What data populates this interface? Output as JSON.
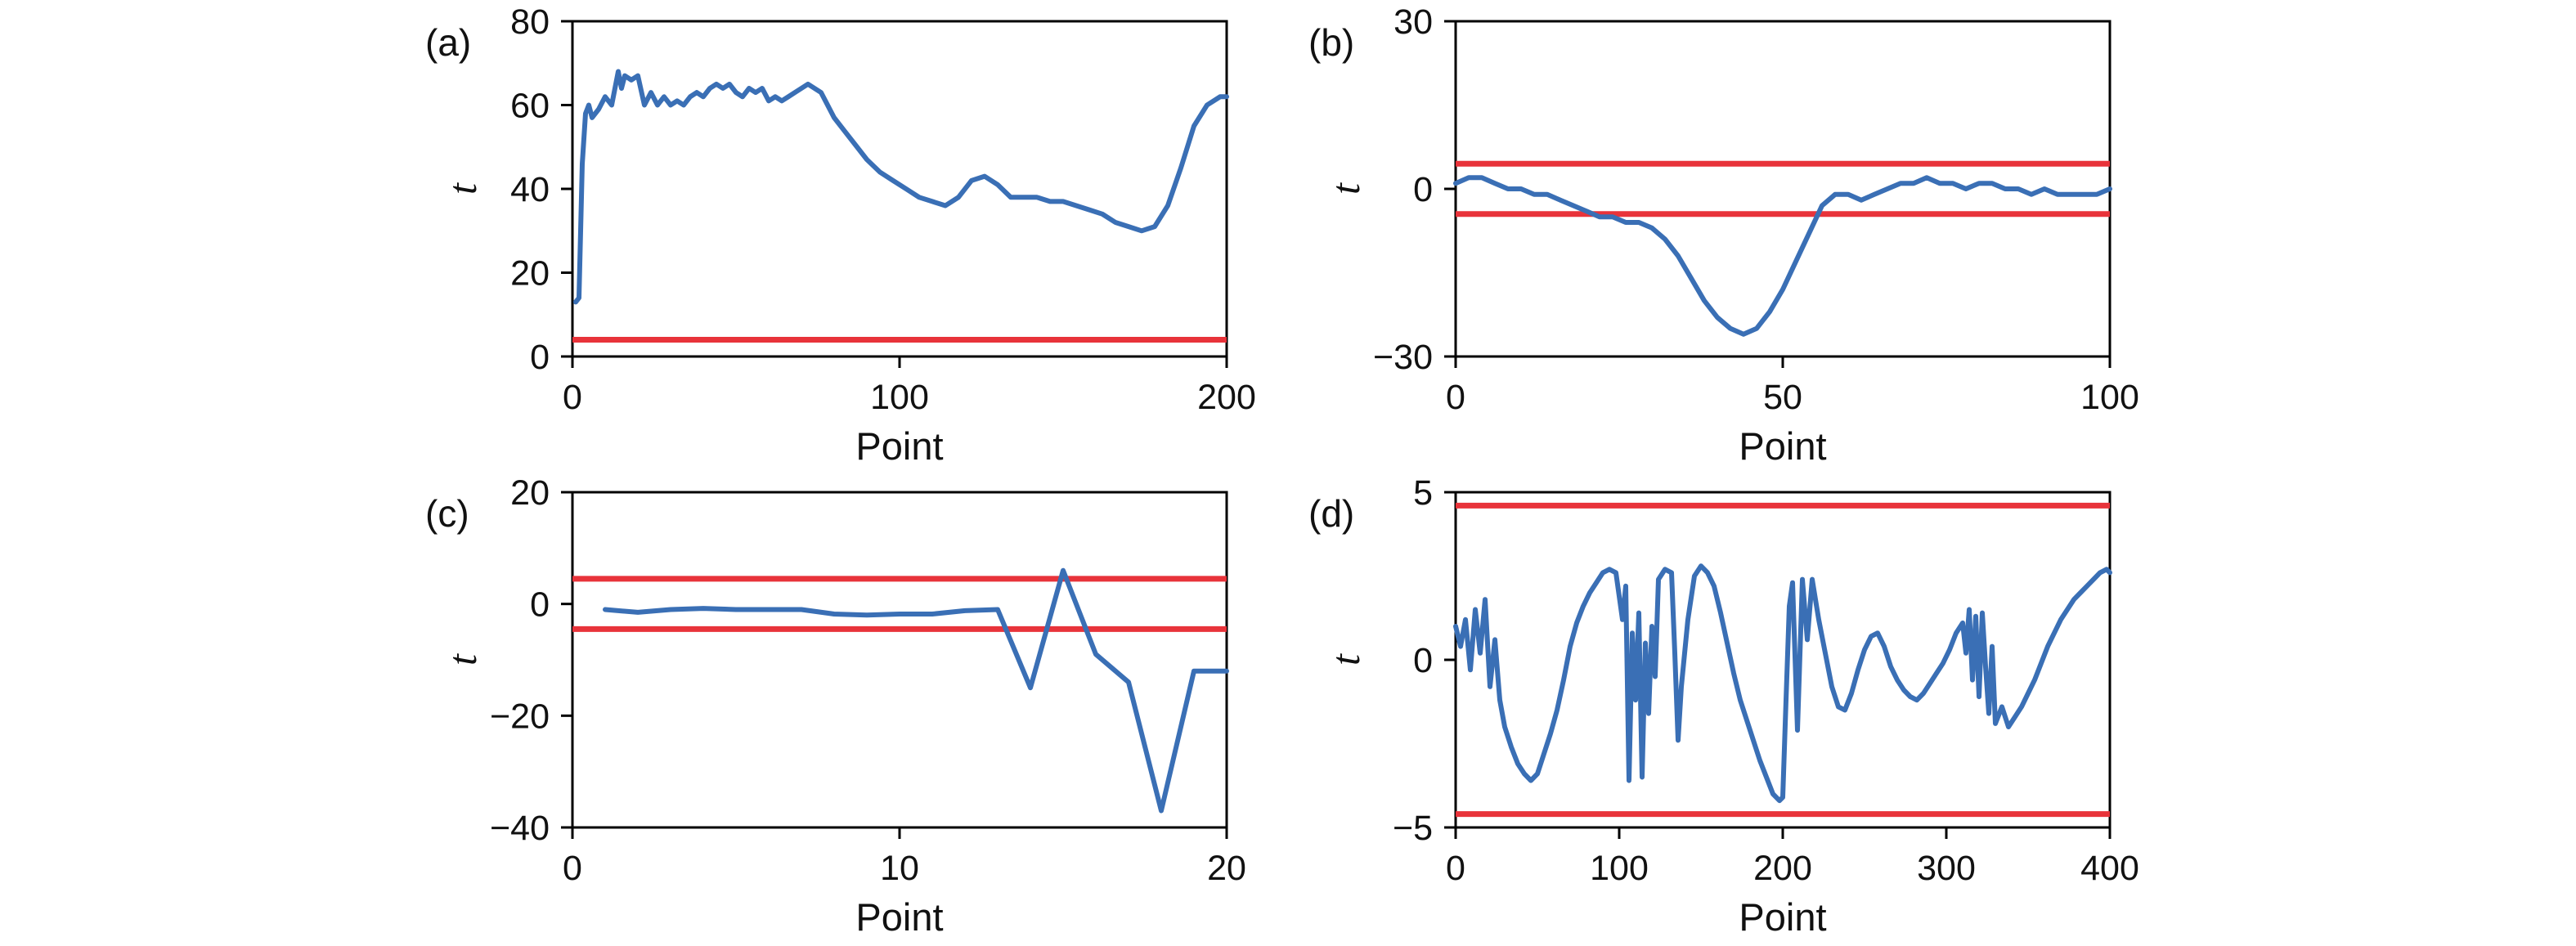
{
  "figure": {
    "background": "#ffffff",
    "axis_color": "#000000"
  },
  "chart_data": [
    {
      "type": "line",
      "panel_label": "(a)",
      "xlabel": "Point",
      "ylabel": "t",
      "xlim": [
        0,
        200
      ],
      "ylim": [
        0,
        80
      ],
      "xticks": [
        0,
        100,
        200
      ],
      "yticks": [
        0,
        20,
        40,
        60,
        80
      ],
      "grid": false,
      "legend": "none",
      "line_color": "#3a6fb5",
      "threshold_color": "#e8333a",
      "threshold_lines": [
        4
      ],
      "series": [
        {
          "points": [
            [
              1,
              13
            ],
            [
              2,
              14
            ],
            [
              3,
              46
            ],
            [
              4,
              58
            ],
            [
              5,
              60
            ],
            [
              6,
              57
            ],
            [
              8,
              59
            ],
            [
              10,
              62
            ],
            [
              12,
              60
            ],
            [
              14,
              68
            ],
            [
              15,
              64
            ],
            [
              16,
              67
            ],
            [
              18,
              66
            ],
            [
              20,
              67
            ],
            [
              22,
              60
            ],
            [
              24,
              63
            ],
            [
              26,
              60
            ],
            [
              28,
              62
            ],
            [
              30,
              60
            ],
            [
              32,
              61
            ],
            [
              34,
              60
            ],
            [
              36,
              62
            ],
            [
              38,
              63
            ],
            [
              40,
              62
            ],
            [
              42,
              64
            ],
            [
              44,
              65
            ],
            [
              46,
              64
            ],
            [
              48,
              65
            ],
            [
              50,
              63
            ],
            [
              52,
              62
            ],
            [
              54,
              64
            ],
            [
              56,
              63
            ],
            [
              58,
              64
            ],
            [
              60,
              61
            ],
            [
              62,
              62
            ],
            [
              64,
              61
            ],
            [
              66,
              62
            ],
            [
              68,
              63
            ],
            [
              70,
              64
            ],
            [
              72,
              65
            ],
            [
              74,
              64
            ],
            [
              76,
              63
            ],
            [
              78,
              60
            ],
            [
              80,
              57
            ],
            [
              83,
              54
            ],
            [
              86,
              51
            ],
            [
              90,
              47
            ],
            [
              94,
              44
            ],
            [
              98,
              42
            ],
            [
              102,
              40
            ],
            [
              106,
              38
            ],
            [
              110,
              37
            ],
            [
              114,
              36
            ],
            [
              118,
              38
            ],
            [
              122,
              42
            ],
            [
              126,
              43
            ],
            [
              130,
              41
            ],
            [
              134,
              38
            ],
            [
              138,
              38
            ],
            [
              142,
              38
            ],
            [
              146,
              37
            ],
            [
              150,
              37
            ],
            [
              154,
              36
            ],
            [
              158,
              35
            ],
            [
              162,
              34
            ],
            [
              166,
              32
            ],
            [
              170,
              31
            ],
            [
              174,
              30
            ],
            [
              178,
              31
            ],
            [
              182,
              36
            ],
            [
              186,
              45
            ],
            [
              190,
              55
            ],
            [
              194,
              60
            ],
            [
              198,
              62
            ],
            [
              200,
              62
            ]
          ]
        }
      ]
    },
    {
      "type": "line",
      "panel_label": "(b)",
      "xlabel": "Point",
      "ylabel": "t",
      "xlim": [
        0,
        100
      ],
      "ylim": [
        -30,
        30
      ],
      "xticks": [
        0,
        50,
        100
      ],
      "yticks": [
        -30,
        0,
        30
      ],
      "grid": false,
      "legend": "none",
      "line_color": "#3a6fb5",
      "threshold_color": "#e8333a",
      "threshold_lines": [
        4.5,
        -4.5
      ],
      "series": [
        {
          "points": [
            [
              0,
              1
            ],
            [
              2,
              2
            ],
            [
              4,
              2
            ],
            [
              6,
              1
            ],
            [
              8,
              0
            ],
            [
              10,
              0
            ],
            [
              12,
              -1
            ],
            [
              14,
              -1
            ],
            [
              16,
              -2
            ],
            [
              18,
              -3
            ],
            [
              20,
              -4
            ],
            [
              22,
              -5
            ],
            [
              24,
              -5
            ],
            [
              26,
              -6
            ],
            [
              28,
              -6
            ],
            [
              30,
              -7
            ],
            [
              32,
              -9
            ],
            [
              34,
              -12
            ],
            [
              36,
              -16
            ],
            [
              38,
              -20
            ],
            [
              40,
              -23
            ],
            [
              42,
              -25
            ],
            [
              44,
              -26
            ],
            [
              46,
              -25
            ],
            [
              48,
              -22
            ],
            [
              50,
              -18
            ],
            [
              52,
              -13
            ],
            [
              54,
              -8
            ],
            [
              56,
              -3
            ],
            [
              58,
              -1
            ],
            [
              60,
              -1
            ],
            [
              62,
              -2
            ],
            [
              64,
              -1
            ],
            [
              66,
              0
            ],
            [
              68,
              1
            ],
            [
              70,
              1
            ],
            [
              72,
              2
            ],
            [
              74,
              1
            ],
            [
              76,
              1
            ],
            [
              78,
              0
            ],
            [
              80,
              1
            ],
            [
              82,
              1
            ],
            [
              84,
              0
            ],
            [
              86,
              0
            ],
            [
              88,
              -1
            ],
            [
              90,
              0
            ],
            [
              92,
              -1
            ],
            [
              94,
              -1
            ],
            [
              96,
              -1
            ],
            [
              98,
              -1
            ],
            [
              100,
              0
            ]
          ]
        }
      ]
    },
    {
      "type": "line",
      "panel_label": "(c)",
      "xlabel": "Point",
      "ylabel": "t",
      "xlim": [
        0,
        20
      ],
      "ylim": [
        -40,
        20
      ],
      "xticks": [
        0,
        10,
        20
      ],
      "yticks": [
        -40,
        -20,
        0,
        20
      ],
      "grid": false,
      "legend": "none",
      "line_color": "#3a6fb5",
      "threshold_color": "#e8333a",
      "threshold_lines": [
        4.5,
        -4.5
      ],
      "series": [
        {
          "points": [
            [
              1,
              -1
            ],
            [
              2,
              -1.5
            ],
            [
              3,
              -1
            ],
            [
              4,
              -0.8
            ],
            [
              5,
              -1
            ],
            [
              6,
              -1
            ],
            [
              7,
              -1
            ],
            [
              8,
              -1.8
            ],
            [
              9,
              -2
            ],
            [
              10,
              -1.8
            ],
            [
              11,
              -1.8
            ],
            [
              12,
              -1.2
            ],
            [
              13,
              -1
            ],
            [
              14,
              -15
            ],
            [
              15,
              6
            ],
            [
              16,
              -9
            ],
            [
              17,
              -14
            ],
            [
              18,
              -37
            ],
            [
              19,
              -12
            ],
            [
              20,
              -12
            ]
          ]
        }
      ]
    },
    {
      "type": "line",
      "panel_label": "(d)",
      "xlabel": "Point",
      "ylabel": "t",
      "xlim": [
        0,
        400
      ],
      "ylim": [
        -5,
        5
      ],
      "xticks": [
        0,
        100,
        200,
        300,
        400
      ],
      "yticks": [
        -5,
        0,
        5
      ],
      "grid": false,
      "legend": "none",
      "line_color": "#3a6fb5",
      "threshold_color": "#e8333a",
      "threshold_lines": [
        4.6,
        -4.6
      ],
      "series": [
        {
          "points": [
            [
              0,
              1
            ],
            [
              3,
              0.4
            ],
            [
              6,
              1.2
            ],
            [
              9,
              -0.3
            ],
            [
              12,
              1.5
            ],
            [
              15,
              0.2
            ],
            [
              18,
              1.8
            ],
            [
              21,
              -0.8
            ],
            [
              24,
              0.6
            ],
            [
              27,
              -1.2
            ],
            [
              30,
              -2
            ],
            [
              34,
              -2.6
            ],
            [
              38,
              -3.1
            ],
            [
              42,
              -3.4
            ],
            [
              46,
              -3.6
            ],
            [
              50,
              -3.4
            ],
            [
              54,
              -2.8
            ],
            [
              58,
              -2.2
            ],
            [
              62,
              -1.5
            ],
            [
              66,
              -0.6
            ],
            [
              70,
              0.4
            ],
            [
              74,
              1.1
            ],
            [
              78,
              1.6
            ],
            [
              82,
              2
            ],
            [
              86,
              2.3
            ],
            [
              90,
              2.6
            ],
            [
              94,
              2.7
            ],
            [
              98,
              2.6
            ],
            [
              102,
              1.2
            ],
            [
              104,
              2.2
            ],
            [
              106,
              -3.6
            ],
            [
              108,
              0.8
            ],
            [
              110,
              -1.2
            ],
            [
              112,
              1.4
            ],
            [
              114,
              -3.5
            ],
            [
              116,
              0.5
            ],
            [
              118,
              -1.6
            ],
            [
              120,
              1
            ],
            [
              122,
              -0.5
            ],
            [
              124,
              2.4
            ],
            [
              128,
              2.7
            ],
            [
              132,
              2.6
            ],
            [
              134,
              0.2
            ],
            [
              136,
              -2.4
            ],
            [
              138,
              -0.8
            ],
            [
              142,
              1.2
            ],
            [
              146,
              2.5
            ],
            [
              150,
              2.8
            ],
            [
              154,
              2.6
            ],
            [
              158,
              2.2
            ],
            [
              162,
              1.4
            ],
            [
              166,
              0.5
            ],
            [
              170,
              -0.4
            ],
            [
              174,
              -1.2
            ],
            [
              178,
              -1.8
            ],
            [
              182,
              -2.4
            ],
            [
              186,
              -3
            ],
            [
              190,
              -3.5
            ],
            [
              194,
              -4
            ],
            [
              198,
              -4.2
            ],
            [
              200,
              -4.1
            ],
            [
              202,
              -1.2
            ],
            [
              204,
              1.6
            ],
            [
              206,
              2.3
            ],
            [
              209,
              -2.1
            ],
            [
              212,
              2.4
            ],
            [
              215,
              0.6
            ],
            [
              218,
              2.4
            ],
            [
              222,
              1.2
            ],
            [
              226,
              0.2
            ],
            [
              230,
              -0.8
            ],
            [
              234,
              -1.4
            ],
            [
              238,
              -1.5
            ],
            [
              242,
              -1
            ],
            [
              246,
              -0.3
            ],
            [
              250,
              0.3
            ],
            [
              254,
              0.7
            ],
            [
              258,
              0.8
            ],
            [
              262,
              0.4
            ],
            [
              266,
              -0.2
            ],
            [
              270,
              -0.6
            ],
            [
              274,
              -0.9
            ],
            [
              278,
              -1.1
            ],
            [
              282,
              -1.2
            ],
            [
              286,
              -1
            ],
            [
              290,
              -0.7
            ],
            [
              294,
              -0.4
            ],
            [
              298,
              -0.1
            ],
            [
              302,
              0.3
            ],
            [
              306,
              0.8
            ],
            [
              310,
              1.1
            ],
            [
              312,
              0.2
            ],
            [
              314,
              1.5
            ],
            [
              316,
              -0.6
            ],
            [
              318,
              1.3
            ],
            [
              320,
              -1.1
            ],
            [
              322,
              1.4
            ],
            [
              324,
              -0.2
            ],
            [
              326,
              -1.6
            ],
            [
              328,
              0.4
            ],
            [
              330,
              -1.9
            ],
            [
              334,
              -1.4
            ],
            [
              338,
              -2
            ],
            [
              342,
              -1.7
            ],
            [
              346,
              -1.4
            ],
            [
              350,
              -1
            ],
            [
              354,
              -0.6
            ],
            [
              358,
              -0.1
            ],
            [
              362,
              0.4
            ],
            [
              366,
              0.8
            ],
            [
              370,
              1.2
            ],
            [
              374,
              1.5
            ],
            [
              378,
              1.8
            ],
            [
              382,
              2
            ],
            [
              386,
              2.2
            ],
            [
              390,
              2.4
            ],
            [
              394,
              2.6
            ],
            [
              398,
              2.7
            ],
            [
              400,
              2.6
            ]
          ]
        }
      ]
    }
  ]
}
